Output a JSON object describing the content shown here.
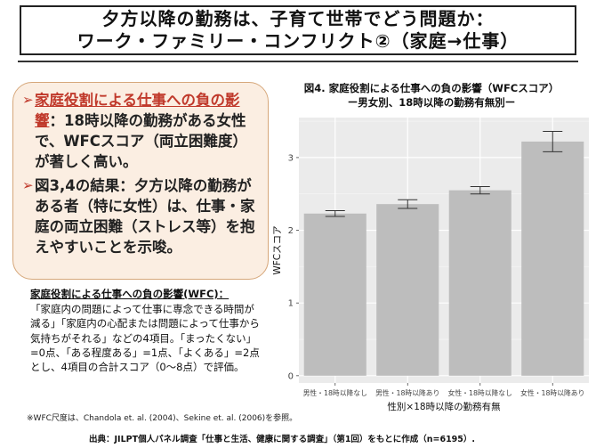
{
  "title": {
    "line1": "夕方以降の勤務は、子育て世帯でどう問題か：",
    "line2": "ワーク・ファミリー・コンフリクト②（家庭→仕事）"
  },
  "bullets": [
    {
      "mark": "➢",
      "highlight": "家庭役割による仕事への負の影響",
      "text": "：18時以降の勤務がある女性で、WFCスコア（両立困難度）が著しく高い。"
    },
    {
      "mark": "➢",
      "highlight": "",
      "text": "図3,4の結果：夕方以降の勤務がある者（特に女性）は、仕事・家庭の両立困難（ストレス等）を抱えやすいことを示唆。"
    }
  ],
  "definition": {
    "title": "家庭役割による仕事への負の影響(WFC)：",
    "body": "「家庭内の問題によって仕事に専念できる時間が減る」「家庭内の心配または問題によって仕事から気持ちがそれる」などの4項目。「まったくない」=0点、「ある程度ある」=1点、「よくある」=2点とし、4項目の合計スコア（0～8点）で評価。"
  },
  "footnote": "※WFC尺度は、Chandola et. al. (2004)、Sekine et. al. (2006)を参照。",
  "source": "出典：JILPT個人パネル調査「仕事と生活、健康に関する調査」（第1回）をもとに作成（n=6195）.",
  "chart_data": {
    "type": "bar",
    "title": "図4.  家庭役割による仕事への負の影響（WFCスコア）",
    "subtitle": "ー男女別、18時以降の勤務有無別ー",
    "categories": [
      "男性・18時以降なし",
      "男性・18時以降あり",
      "女性・18時以降なし",
      "女性・18時以降あり"
    ],
    "values": [
      2.23,
      2.36,
      2.55,
      3.22
    ],
    "error_low": [
      2.19,
      2.3,
      2.5,
      3.08
    ],
    "error_high": [
      2.27,
      2.42,
      2.6,
      3.36
    ],
    "ylabel": "WFCスコア",
    "xlabel": "性別×18時以降の勤務有無",
    "ylim": [
      -0.1,
      3.55
    ],
    "yticks": [
      0,
      1,
      2,
      3
    ],
    "bar_color": "#bdbdbd",
    "panel_color": "#ebebeb"
  }
}
